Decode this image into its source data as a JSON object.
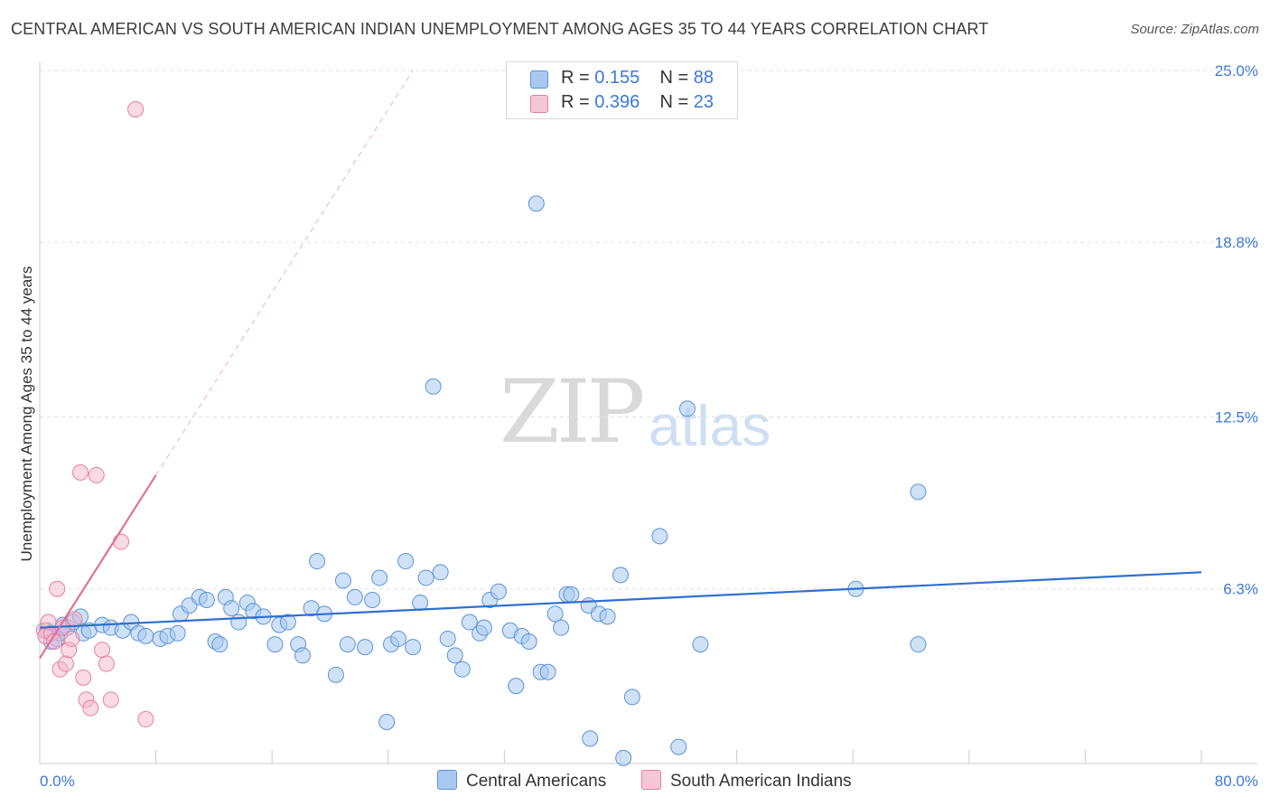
{
  "header": {
    "title": "CENTRAL AMERICAN VS SOUTH AMERICAN INDIAN UNEMPLOYMENT AMONG AGES 35 TO 44 YEARS CORRELATION CHART",
    "source": "Source: ZipAtlas.com"
  },
  "watermark": {
    "zip": "ZIP",
    "atlas": "atlas"
  },
  "legend": {
    "rows": [
      {
        "r_label": "R =",
        "r_value": "0.155",
        "n_label": "N =",
        "n_value": "88"
      },
      {
        "r_label": "R =",
        "r_value": "0.396",
        "n_label": "N =",
        "n_value": "23"
      }
    ],
    "series_names": [
      "Central Americans",
      "South American Indians"
    ]
  },
  "colors": {
    "blue_fill": "#a8c8f0",
    "blue_stroke": "#5b93d6",
    "blue_line": "#2f6fd0",
    "pink_fill": "#f5b8cb",
    "pink_stroke": "#e57ea0",
    "pink_line": "#e0709a",
    "grid": "#e2e2e2",
    "axis_label": "#3b78d8"
  },
  "chart_data": {
    "type": "scatter",
    "title": "CENTRAL AMERICAN VS SOUTH AMERICAN INDIAN UNEMPLOYMENT AMONG AGES 35 TO 44 YEARS CORRELATION CHART",
    "xlabel": "",
    "ylabel": "Unemployment Among Ages 35 to 44 years",
    "xlim": [
      0,
      80
    ],
    "ylim": [
      0,
      25
    ],
    "x_tick_labels": [
      "0.0%",
      "80.0%"
    ],
    "y_ticks": [
      6.3,
      12.5,
      18.8,
      25.0
    ],
    "y_tick_labels": [
      "6.3%",
      "12.5%",
      "18.8%",
      "25.0%"
    ],
    "x_minor_ticks": [
      0,
      8,
      16,
      24,
      32,
      40,
      48,
      56,
      64,
      72,
      80
    ],
    "series": [
      {
        "name": "Central Americans",
        "r": 0.155,
        "n": 88,
        "trend": {
          "x": [
            0,
            80
          ],
          "y": [
            4.9,
            6.9
          ]
        },
        "points": [
          [
            0.5,
            4.8
          ],
          [
            0.8,
            4.4
          ],
          [
            1.2,
            4.5
          ],
          [
            1.4,
            4.7
          ],
          [
            1.6,
            5.0
          ],
          [
            1.9,
            4.9
          ],
          [
            2.3,
            5.1
          ],
          [
            2.8,
            5.3
          ],
          [
            3.0,
            4.7
          ],
          [
            3.4,
            4.8
          ],
          [
            4.3,
            5.0
          ],
          [
            4.9,
            4.9
          ],
          [
            5.7,
            4.8
          ],
          [
            6.3,
            5.1
          ],
          [
            6.8,
            4.7
          ],
          [
            7.3,
            4.6
          ],
          [
            8.3,
            4.5
          ],
          [
            8.8,
            4.6
          ],
          [
            9.5,
            4.7
          ],
          [
            9.7,
            5.4
          ],
          [
            10.3,
            5.7
          ],
          [
            11.0,
            6.0
          ],
          [
            11.5,
            5.9
          ],
          [
            12.1,
            4.4
          ],
          [
            12.4,
            4.3
          ],
          [
            12.8,
            6.0
          ],
          [
            13.2,
            5.6
          ],
          [
            13.7,
            5.1
          ],
          [
            14.3,
            5.8
          ],
          [
            14.7,
            5.5
          ],
          [
            15.4,
            5.3
          ],
          [
            16.2,
            4.3
          ],
          [
            16.5,
            5.0
          ],
          [
            17.1,
            5.1
          ],
          [
            17.8,
            4.3
          ],
          [
            18.1,
            3.9
          ],
          [
            18.7,
            5.6
          ],
          [
            19.1,
            7.3
          ],
          [
            19.6,
            5.4
          ],
          [
            20.4,
            3.2
          ],
          [
            20.9,
            6.6
          ],
          [
            21.2,
            4.3
          ],
          [
            21.7,
            6.0
          ],
          [
            22.4,
            4.2
          ],
          [
            22.9,
            5.9
          ],
          [
            23.4,
            6.7
          ],
          [
            23.9,
            1.5
          ],
          [
            24.2,
            4.3
          ],
          [
            24.7,
            4.5
          ],
          [
            25.2,
            7.3
          ],
          [
            25.7,
            4.2
          ],
          [
            26.2,
            5.8
          ],
          [
            26.6,
            6.7
          ],
          [
            27.1,
            13.6
          ],
          [
            27.6,
            6.9
          ],
          [
            28.1,
            4.5
          ],
          [
            28.6,
            3.9
          ],
          [
            29.1,
            3.4
          ],
          [
            29.6,
            5.1
          ],
          [
            30.3,
            4.7
          ],
          [
            30.6,
            4.9
          ],
          [
            31.0,
            5.9
          ],
          [
            31.6,
            6.2
          ],
          [
            32.4,
            4.8
          ],
          [
            32.8,
            2.8
          ],
          [
            33.2,
            4.6
          ],
          [
            33.7,
            4.4
          ],
          [
            34.2,
            20.2
          ],
          [
            34.5,
            3.3
          ],
          [
            35.0,
            3.3
          ],
          [
            35.5,
            5.4
          ],
          [
            35.9,
            4.9
          ],
          [
            36.3,
            6.1
          ],
          [
            36.6,
            6.1
          ],
          [
            37.8,
            5.7
          ],
          [
            38.5,
            5.4
          ],
          [
            39.1,
            5.3
          ],
          [
            40.0,
            6.8
          ],
          [
            40.8,
            2.4
          ],
          [
            42.7,
            8.2
          ],
          [
            45.5,
            4.3
          ],
          [
            56.2,
            6.3
          ],
          [
            60.5,
            9.8
          ],
          [
            60.5,
            4.3
          ],
          [
            44.6,
            12.8
          ],
          [
            37.9,
            0.9
          ],
          [
            40.2,
            0.2
          ],
          [
            44.0,
            0.6
          ]
        ]
      },
      {
        "name": "South American Indians",
        "r": 0.396,
        "n": 23,
        "trend": {
          "x": [
            0,
            8
          ],
          "y": [
            3.8,
            10.4
          ]
        },
        "trend_extended": {
          "x": [
            8,
            25.7
          ],
          "y": [
            10.4,
            25.0
          ]
        },
        "points": [
          [
            0.3,
            4.8
          ],
          [
            0.4,
            4.6
          ],
          [
            0.6,
            5.1
          ],
          [
            0.8,
            4.7
          ],
          [
            1.0,
            4.4
          ],
          [
            1.2,
            6.3
          ],
          [
            1.4,
            3.4
          ],
          [
            1.6,
            4.9
          ],
          [
            1.8,
            3.6
          ],
          [
            2.0,
            4.1
          ],
          [
            2.2,
            4.5
          ],
          [
            2.4,
            5.2
          ],
          [
            2.8,
            10.5
          ],
          [
            3.0,
            3.1
          ],
          [
            3.2,
            2.3
          ],
          [
            3.5,
            2.0
          ],
          [
            3.9,
            10.4
          ],
          [
            4.3,
            4.1
          ],
          [
            4.6,
            3.6
          ],
          [
            4.9,
            2.3
          ],
          [
            5.6,
            8.0
          ],
          [
            6.6,
            23.6
          ],
          [
            7.3,
            1.6
          ]
        ]
      }
    ]
  }
}
